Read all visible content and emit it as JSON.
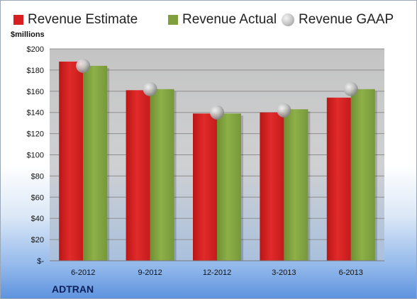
{
  "chart_data": {
    "type": "bar",
    "categories": [
      "6-2012",
      "9-2012",
      "12-2012",
      "3-2013",
      "6-2013"
    ],
    "series": [
      {
        "name": "Revenue Estimate",
        "values": [
          188,
          161,
          139,
          140,
          154
        ],
        "color": "#d81e1e"
      },
      {
        "name": "Revenue Actual",
        "values": [
          184,
          162,
          139,
          143,
          162
        ],
        "color": "#7fa03c"
      },
      {
        "name": "Revenue GAAP",
        "values": [
          184,
          162,
          140,
          142,
          162
        ],
        "color": "#b8b8b8",
        "marker": "circle"
      }
    ],
    "ylabel": "$millions",
    "ylim": [
      0,
      200
    ],
    "yticks": [
      0,
      20,
      40,
      60,
      80,
      100,
      120,
      140,
      160,
      180,
      200
    ],
    "ytick_labels": [
      "$-",
      "$20",
      "$40",
      "$60",
      "$80",
      "$100",
      "$120",
      "$140",
      "$160",
      "$180",
      "$200"
    ],
    "legend_position": "top",
    "grid": true
  },
  "footer": {
    "company": "ADTRAN"
  }
}
